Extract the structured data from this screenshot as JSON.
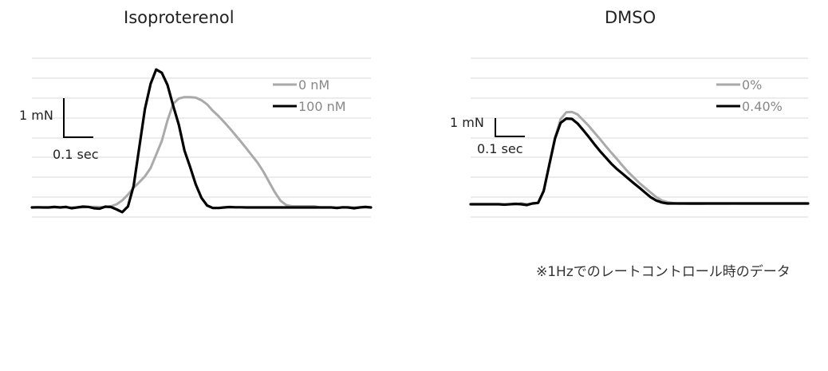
{
  "footnote": "※1Hzでのレートコントロール時のデータ",
  "colors": {
    "gray_series": "#aaaaaa",
    "black_series": "#000000",
    "grid": "#d9d9d9"
  },
  "chart_data": [
    {
      "type": "line",
      "title": "Isoproterenol",
      "xlabel": "",
      "ylabel": "",
      "grid": true,
      "legend_position": "top-right",
      "scale_bar": {
        "y_label": "1 mN",
        "x_label": "0.1 sec"
      },
      "series": [
        {
          "name": "0 nM",
          "color": "#aaaaaa",
          "values": [
            0,
            0,
            0,
            0,
            0,
            0,
            0,
            0,
            0,
            0.01,
            0.02,
            0.03,
            0.02,
            0.03,
            0.06,
            0.16,
            0.36,
            0.65,
            1.0,
            1.28,
            1.58,
            2.0,
            2.68,
            3.38,
            4.42,
            5.26,
            5.53,
            5.6,
            5.6,
            5.57,
            5.44,
            5.23,
            4.91,
            4.64,
            4.34,
            4.02,
            3.68,
            3.33,
            2.98,
            2.61,
            2.25,
            1.8,
            1.28,
            0.77,
            0.34,
            0.12,
            0.06,
            0.06,
            0.06,
            0.06,
            0.06,
            0,
            0,
            0,
            0,
            0,
            0,
            0,
            0,
            0,
            0
          ]
        },
        {
          "name": "100 nM",
          "color": "#000000",
          "values": [
            0,
            0.01,
            0,
            0,
            0.03,
            0,
            0.03,
            -0.04,
            0,
            0.04,
            0.03,
            -0.04,
            -0.06,
            0.04,
            0.02,
            -0.1,
            -0.24,
            0.05,
            1.09,
            3.05,
            5.0,
            6.27,
            7.0,
            6.83,
            6.21,
            5.16,
            4.19,
            2.88,
            2.06,
            1.17,
            0.49,
            0.1,
            -0.03,
            -0.03,
            0,
            0.02,
            0.01,
            0.01,
            0,
            0,
            0,
            0,
            0,
            0,
            0,
            0,
            0,
            0,
            0,
            0,
            0,
            0,
            0,
            0,
            -0.03,
            0.01,
            0,
            -0.04,
            0,
            0.03,
            0
          ]
        }
      ]
    },
    {
      "type": "line",
      "title": "DMSO",
      "xlabel": "",
      "ylabel": "",
      "grid": true,
      "legend_position": "top-right",
      "scale_bar": {
        "y_label": "1 mN",
        "x_label": "0.1 sec"
      },
      "series": [
        {
          "name": "0%",
          "color": "#aaaaaa",
          "values": [
            0,
            0,
            0,
            0,
            0,
            0,
            0,
            0,
            0,
            0.05,
            0.01,
            0.03,
            0.08,
            0.66,
            2.02,
            3.39,
            4.32,
            4.67,
            4.69,
            4.56,
            4.27,
            3.98,
            3.64,
            3.31,
            2.96,
            2.62,
            2.3,
            1.96,
            1.64,
            1.36,
            1.08,
            0.84,
            0.6,
            0.37,
            0.19,
            0.11,
            0.06,
            0.03,
            0.03,
            0.02,
            0.02,
            0.02,
            0.03,
            0.03,
            0.03,
            0.03,
            0.03,
            0.04,
            0.03,
            0.03,
            0.03,
            0.03,
            0.03,
            0.03,
            0.03,
            0.03,
            0.03,
            0.03,
            0.03,
            0.03,
            0.03
          ]
        },
        {
          "name": "0.40%",
          "color": "#000000",
          "values": [
            0,
            0,
            0,
            0,
            0,
            0,
            -0.02,
            0,
            0.02,
            0,
            -0.04,
            0.04,
            0.07,
            0.68,
            2.02,
            3.34,
            4.13,
            4.35,
            4.33,
            4.1,
            3.77,
            3.42,
            3.05,
            2.7,
            2.38,
            2.06,
            1.79,
            1.55,
            1.31,
            1.07,
            0.84,
            0.6,
            0.36,
            0.19,
            0.09,
            0.04,
            0.04,
            0.04,
            0.04,
            0.04,
            0.04,
            0.04,
            0.04,
            0.04,
            0.04,
            0.04,
            0.04,
            0.04,
            0.04,
            0.04,
            0.04,
            0.04,
            0.04,
            0.04,
            0.04,
            0.04,
            0.04,
            0.04,
            0.04,
            0.04,
            0.04
          ]
        }
      ]
    }
  ]
}
